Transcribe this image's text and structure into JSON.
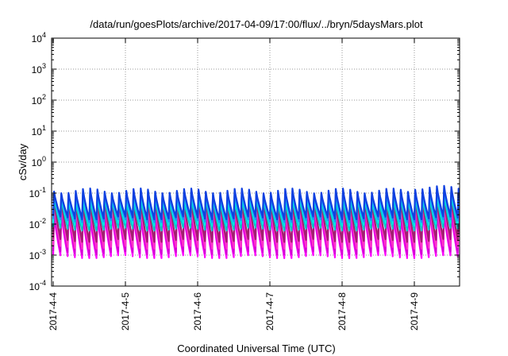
{
  "chart_data": {
    "type": "line",
    "title": "/data/run/goesPlots/archive/2017-04-09/17:00/flux/../bryn/5daysMars.plot",
    "xlabel": "Coordinated Universal Time (UTC)",
    "ylabel": "cSv/day",
    "y_scale": "log",
    "ylim": [
      0.0001,
      10000
    ],
    "xlim": [
      0,
      5.75
    ],
    "x_unit": "days since 2017-4-4",
    "x_ticks": [
      {
        "value": 0,
        "label": "2017-4-4"
      },
      {
        "value": 1,
        "label": "2017-4-5"
      },
      {
        "value": 2,
        "label": "2017-4-6"
      },
      {
        "value": 3,
        "label": "2017-4-7"
      },
      {
        "value": 4,
        "label": "2017-4-8"
      },
      {
        "value": 5,
        "label": "2017-4-9"
      }
    ],
    "y_ticks": [
      {
        "value": 0.0001,
        "base": "10",
        "exp": "-4"
      },
      {
        "value": 0.001,
        "base": "10",
        "exp": "-3"
      },
      {
        "value": 0.01,
        "base": "10",
        "exp": "-2"
      },
      {
        "value": 0.1,
        "base": "10",
        "exp": "-1"
      },
      {
        "value": 1,
        "base": "10",
        "exp": "0"
      },
      {
        "value": 10,
        "base": "10",
        "exp": "1"
      },
      {
        "value": 100,
        "base": "10",
        "exp": "2"
      },
      {
        "value": 1000,
        "base": "10",
        "exp": "3"
      },
      {
        "value": 10000,
        "base": "10",
        "exp": "4"
      }
    ],
    "grid": true,
    "cycle_period_days": 0.1,
    "series": [
      {
        "color": "#ff00ff",
        "peak": 0.022,
        "trough": 0.0009
      },
      {
        "color": "#d400d4",
        "peak": 0.03,
        "trough": 0.0012
      },
      {
        "color": "#ff33cc",
        "peak": 0.045,
        "trough": 0.0018
      },
      {
        "color": "#a0206e",
        "peak": 0.06,
        "trough": 0.003
      },
      {
        "color": "#00c8c8",
        "peak": 0.07,
        "trough": 0.007
      },
      {
        "color": "#00e6e6",
        "peak": 0.085,
        "trough": 0.01
      },
      {
        "color": "#1e90ff",
        "peak": 0.1,
        "trough": 0.013
      },
      {
        "color": "#1040e0",
        "peak": 0.12,
        "trough": 0.016
      }
    ]
  }
}
